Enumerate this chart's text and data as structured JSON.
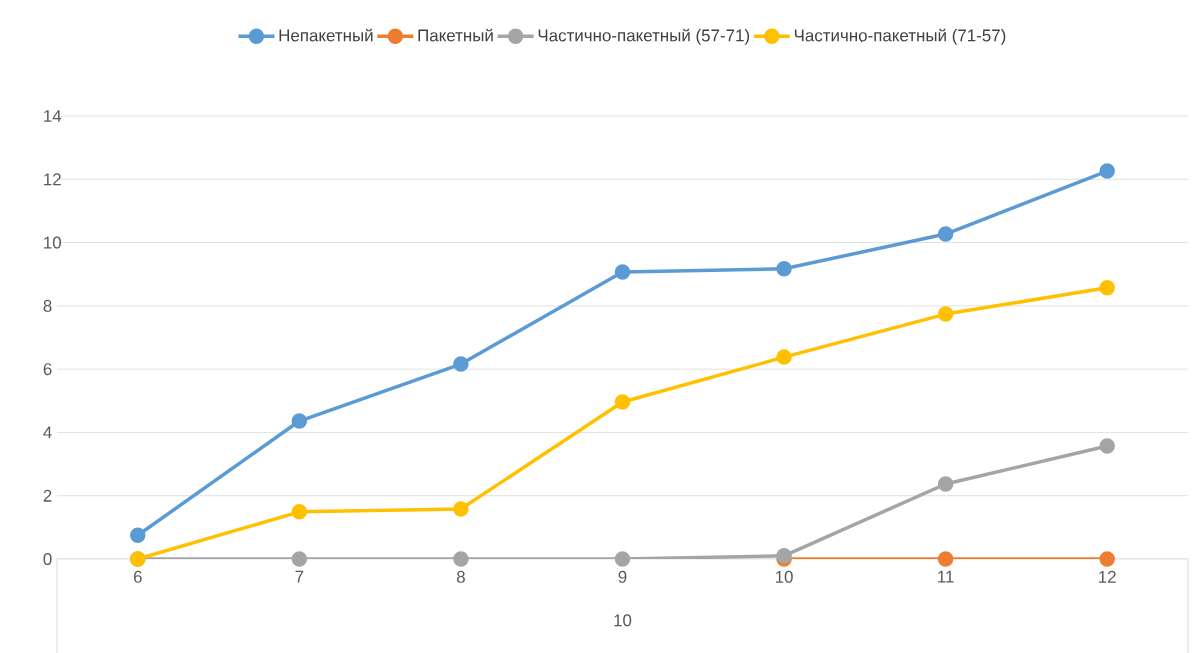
{
  "chart_data": {
    "type": "line",
    "categories": [
      "6",
      "7",
      "8",
      "9",
      "10",
      "11",
      "12"
    ],
    "xlabel": "10",
    "ylim": [
      0,
      14
    ],
    "yticks": [
      0,
      2,
      4,
      6,
      8,
      10,
      12,
      14
    ],
    "grid": "y",
    "legend": "top",
    "marker": "circle",
    "line_style": "solid",
    "series": [
      {
        "name": "Непакетный",
        "color": "#5b9bd5",
        "values": [
          0.75,
          4.36,
          6.16,
          9.07,
          9.17,
          10.27,
          12.26
        ]
      },
      {
        "name": "Пакетный",
        "color": "#ed7d31",
        "values": [
          null,
          null,
          null,
          null,
          0,
          0,
          0
        ]
      },
      {
        "name": "Частично-пакетный (57-71)",
        "color": "#a5a5a5",
        "values": [
          0,
          0,
          0,
          0,
          0.1,
          2.37,
          3.57
        ]
      },
      {
        "name": "Частично-пакетный (71-57)",
        "color": "#ffc000",
        "values": [
          0,
          1.49,
          1.58,
          4.96,
          6.38,
          7.74,
          8.57
        ]
      }
    ]
  }
}
